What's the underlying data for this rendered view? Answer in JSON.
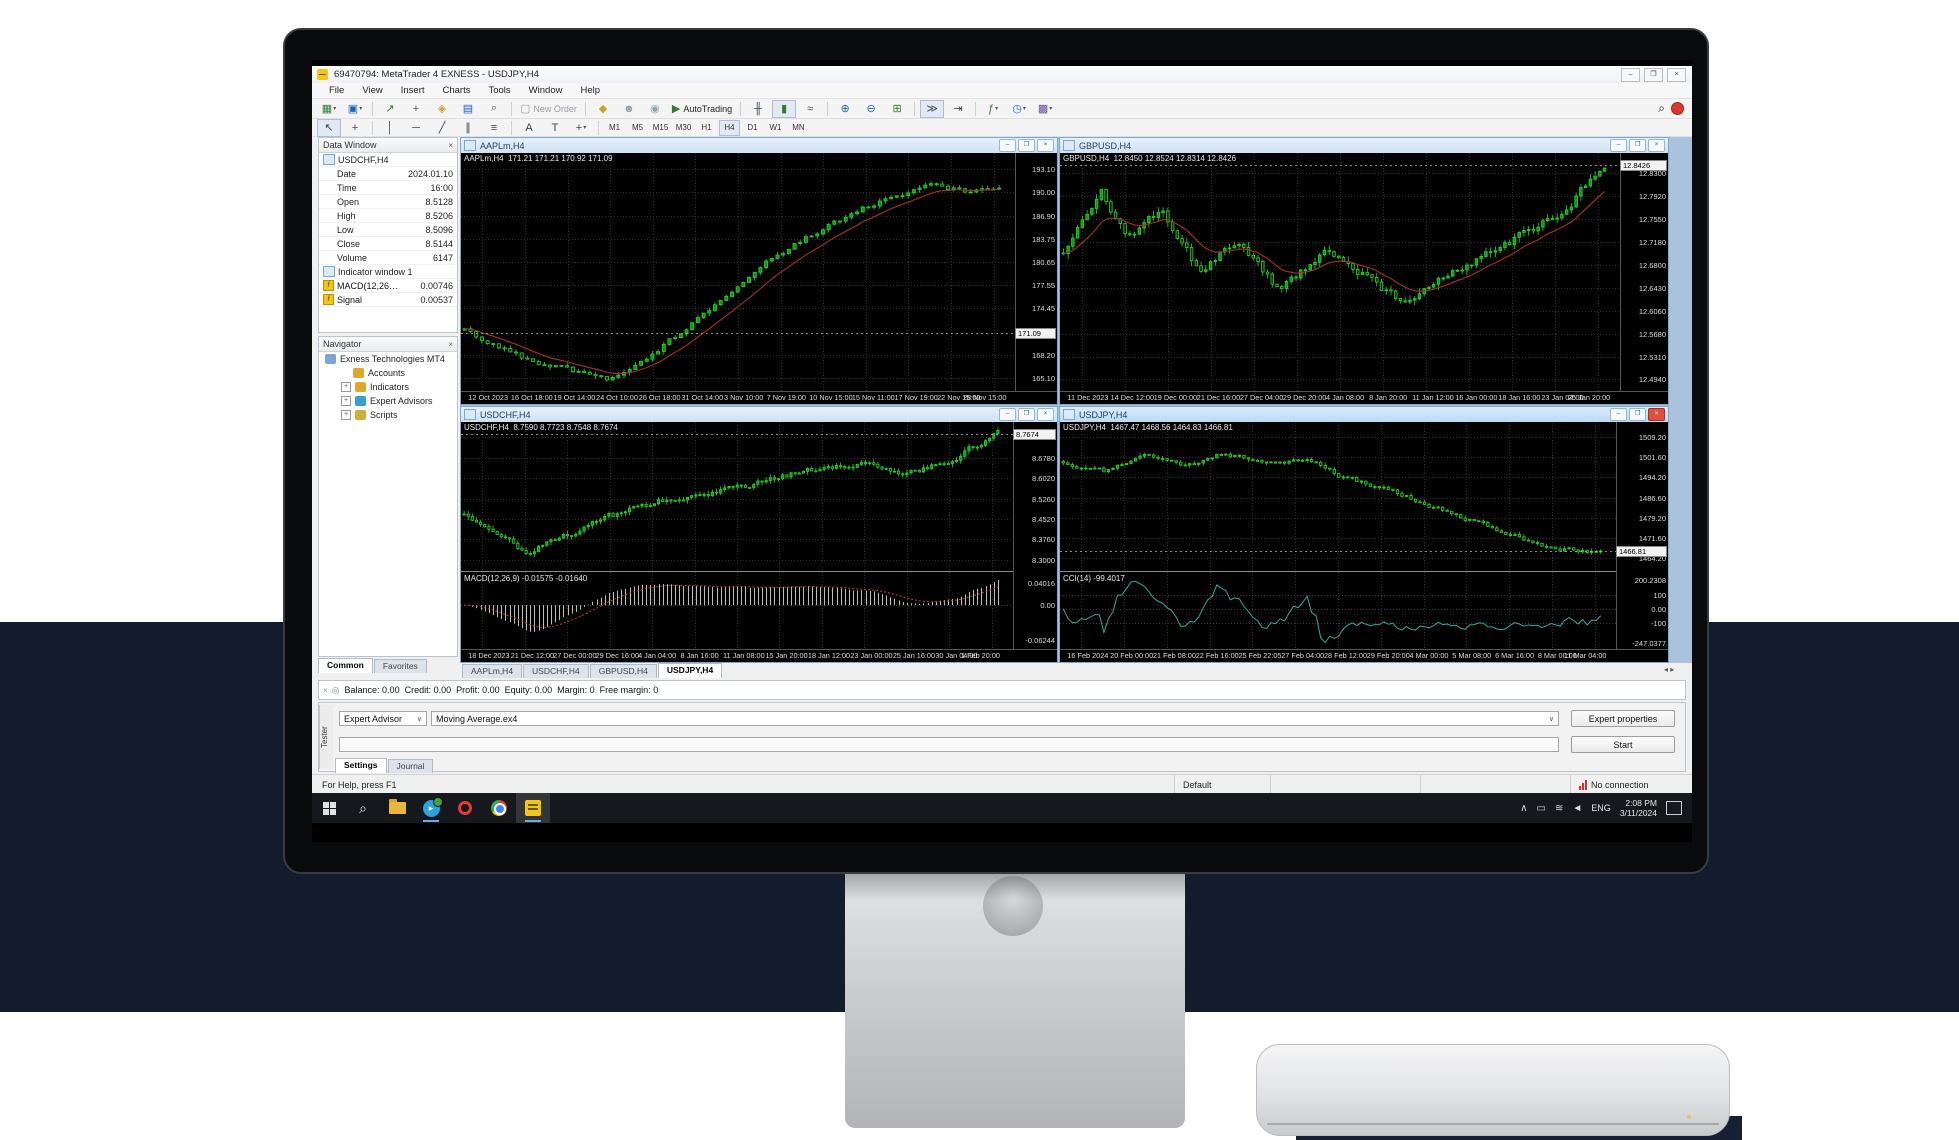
{
  "colors": {
    "candle_green": "#2bd62b",
    "candle_fill": "#149414",
    "ma_red": "#a83226",
    "cci_teal": "#3aa9a0",
    "macd_silver": "#bdbdbd",
    "navy_band": "#131c2d",
    "mdi_blue": "#a9c3dc"
  },
  "window": {
    "title": "69470794: MetaTrader 4 EXNESS - USDJPY,H4",
    "minimize": "–",
    "maximize": "❐",
    "close": "×"
  },
  "menu": [
    "File",
    "View",
    "Insert",
    "Charts",
    "Tools",
    "Window",
    "Help"
  ],
  "toolbar_main": [
    {
      "name": "new-chart-icon",
      "glyph": "▦",
      "color": "#2e7d32",
      "dropdown": true
    },
    {
      "name": "profiles-icon",
      "glyph": "▣",
      "color": "#1565c0",
      "dropdown": true
    },
    {
      "sep": true
    },
    {
      "name": "market-watch-icon",
      "glyph": "↗",
      "color": "#2e7d32"
    },
    {
      "name": "data-window-icon",
      "glyph": "+",
      "color": "#455a64"
    },
    {
      "name": "navigator-icon",
      "glyph": "◈",
      "color": "#c9a227"
    },
    {
      "name": "terminal-icon",
      "glyph": "▤",
      "color": "#1565c0"
    },
    {
      "name": "strategy-tester-icon",
      "glyph": "⌕",
      "color": "#455a64"
    },
    {
      "sep": true
    },
    {
      "name": "new-order-icon",
      "glyph": "▢",
      "color": "#9aa0a6",
      "label": "New Order",
      "grayed": true
    },
    {
      "sep": true
    },
    {
      "name": "metaeditor-icon",
      "glyph": "◆",
      "color": "#c9a227"
    },
    {
      "name": "chat-icon",
      "glyph": "☻",
      "color": "#90a4ae"
    },
    {
      "name": "news-icon",
      "glyph": "◉",
      "color": "#90a4ae"
    },
    {
      "name": "autotrading-icon",
      "glyph": "▶",
      "color": "#2e7d32",
      "label": "AutoTrading"
    },
    {
      "sep": true
    },
    {
      "name": "bar-chart-icon",
      "glyph": "╫",
      "color": "#37474f"
    },
    {
      "name": "candlestick-icon",
      "glyph": "▮",
      "color": "#2e7d32",
      "pressed": true
    },
    {
      "name": "line-chart-icon",
      "glyph": "≈",
      "color": "#37474f"
    },
    {
      "sep": true
    },
    {
      "name": "zoom-in-icon",
      "glyph": "⊕",
      "color": "#1565c0"
    },
    {
      "name": "zoom-out-icon",
      "glyph": "⊖",
      "color": "#1565c0"
    },
    {
      "name": "tile-windows-icon",
      "glyph": "⊞",
      "color": "#2e7d32"
    },
    {
      "sep": true
    },
    {
      "name": "auto-scroll-icon",
      "glyph": "≫",
      "color": "#37474f",
      "pressed": true
    },
    {
      "name": "chart-shift-icon",
      "glyph": "⇥",
      "color": "#37474f"
    },
    {
      "sep": true
    },
    {
      "name": "indicators-icon",
      "glyph": "ƒ",
      "color": "#2e7d32",
      "dropdown": true
    },
    {
      "name": "periods-icon",
      "glyph": "◷",
      "color": "#1565c0",
      "dropdown": true
    },
    {
      "name": "templates-icon",
      "glyph": "▩",
      "color": "#6a4fa3",
      "dropdown": true
    }
  ],
  "toolbar_tools": [
    {
      "name": "cursor-icon",
      "glyph": "↖",
      "pressed": true
    },
    {
      "name": "crosshair-icon",
      "glyph": "+"
    },
    {
      "sep": true
    },
    {
      "name": "vertical-line-icon",
      "glyph": "│"
    },
    {
      "name": "horizontal-line-icon",
      "glyph": "─"
    },
    {
      "name": "trendline-icon",
      "glyph": "╱"
    },
    {
      "name": "channel-icon",
      "glyph": "∥"
    },
    {
      "name": "fibonacci-icon",
      "glyph": "≡"
    },
    {
      "sep": true
    },
    {
      "name": "text-icon",
      "glyph": "A"
    },
    {
      "name": "label-icon",
      "glyph": "T"
    },
    {
      "name": "arrows-icon",
      "glyph": "+",
      "dropdown": true
    }
  ],
  "timeframes": {
    "items": [
      "M1",
      "M5",
      "M15",
      "M30",
      "H1",
      "H4",
      "D1",
      "W1",
      "MN"
    ],
    "active": "H4"
  },
  "search": {
    "name": "search-icon",
    "glyph": "⌕"
  },
  "data_window": {
    "title": "Data Window",
    "symbol": "USDCHF,H4",
    "rows": [
      {
        "label": "Date",
        "value": "2024.01.10"
      },
      {
        "label": "Time",
        "value": "16:00"
      },
      {
        "label": "Open",
        "value": "8.5128"
      },
      {
        "label": "High",
        "value": "8.5206"
      },
      {
        "label": "Low",
        "value": "8.5096"
      },
      {
        "label": "Close",
        "value": "8.5144"
      },
      {
        "label": "Volume",
        "value": "6147"
      }
    ],
    "indicator_header": "Indicator window 1",
    "indicator_rows": [
      {
        "label": "MACD(12,26…",
        "value": "0.00746"
      },
      {
        "label": "Signal",
        "value": "0.00537"
      }
    ]
  },
  "navigator": {
    "title": "Navigator",
    "root": "Exness Technologies MT4",
    "items": [
      {
        "label": "Accounts",
        "expand": false,
        "color": "#e0a62e"
      },
      {
        "label": "Indicators",
        "expand": true,
        "color": "#e0a62e"
      },
      {
        "label": "Expert Advisors",
        "expand": true,
        "color": "#39a0c8"
      },
      {
        "label": "Scripts",
        "expand": true,
        "color": "#c8b23a"
      }
    ]
  },
  "left_tabs": {
    "items": [
      "Common",
      "Favorites"
    ],
    "active": "Common"
  },
  "chart_tabs": {
    "items": [
      "AAPLm,H4",
      "USDCHF,H4",
      "GBPUSD,H4",
      "USDJPY,H4"
    ],
    "active": "USDJPY,H4"
  },
  "terminal": {
    "balance_line": "Balance: 0.00  Credit: 0.00  Profit: 0.00  Equity: 0.00  Margin: 0  Free margin: 0"
  },
  "tester": {
    "side_label": "Tester",
    "type_value": "Expert Advisor",
    "ea_value": "Moving Average.ex4",
    "properties_label": "Expert properties",
    "start_label": "Start",
    "tabs": [
      "Settings",
      "Journal"
    ],
    "active_tab": "Settings"
  },
  "status": {
    "help": "For Help, press F1",
    "profile": "Default",
    "connection": "No connection"
  },
  "taskbar": {
    "lang": "ENG",
    "time": "2:08 PM",
    "date": "3/11/2024"
  },
  "chart_data": [
    {
      "type": "candlestick",
      "symbol": "AAPLm,H4",
      "info": "AAPLm,H4  171.21 171.21 170.92 171.09",
      "tick_values": [
        193.1,
        190.0,
        186.9,
        183.75,
        180.65,
        177.55,
        174.45,
        168.2,
        165.1
      ],
      "tick_labels": [
        "193.10",
        "190.00",
        "186.90",
        "183.75",
        "180.65",
        "177.55",
        "174.45",
        "168.20",
        "165.10"
      ],
      "ylim": [
        163.6,
        194.9
      ],
      "current": 171.09,
      "current_label": "171.09",
      "time_labels": [
        "12 Oct 2023",
        "16 Oct 18:00",
        "19 Oct 14:00",
        "24 Oct 10:00",
        "26 Oct 18:00",
        "31 Oct 14:00",
        "3 Nov 10:00",
        "7 Nov 19:00",
        "10 Nov 15:00",
        "15 Nov 11:00",
        "17 Nov 19:00",
        "22 Nov 15:00",
        "28 Nov 15:00"
      ],
      "candles": 95,
      "noise": 0.65,
      "seed": 7,
      "ma": true,
      "ma_window": 10,
      "trend": [
        [
          0,
          171.5
        ],
        [
          0.06,
          169.5
        ],
        [
          0.12,
          167.5
        ],
        [
          0.2,
          166.0
        ],
        [
          0.27,
          164.9
        ],
        [
          0.33,
          167.5
        ],
        [
          0.4,
          171.0
        ],
        [
          0.48,
          175.5
        ],
        [
          0.56,
          180.5
        ],
        [
          0.64,
          184.0
        ],
        [
          0.72,
          187.0
        ],
        [
          0.8,
          189.5
        ],
        [
          0.88,
          191.2
        ],
        [
          0.94,
          190.0
        ],
        [
          1,
          190.4
        ]
      ],
      "active": false,
      "sub": null
    },
    {
      "type": "candlestick",
      "symbol": "GBPUSD,H4",
      "info": "GBPUSD,H4  12.8450 12.8524 12.8314 12.8426",
      "tick_values": [
        12.83,
        12.792,
        12.755,
        12.718,
        12.68,
        12.643,
        12.606,
        12.568,
        12.531,
        12.494
      ],
      "tick_labels": [
        "12.8300",
        "12.7920",
        "12.7550",
        "12.7180",
        "12.6800",
        "12.6430",
        "12.6060",
        "12.5680",
        "12.5310",
        "12.4940"
      ],
      "ylim": [
        12.478,
        12.858
      ],
      "current": 12.8426,
      "current_label": "12.8426",
      "time_labels": [
        "11 Dec 2023",
        "14 Dec 12:00",
        "19 Dec 00:00",
        "21 Dec 16:00",
        "27 Dec 04:00",
        "29 Dec 20:00",
        "4 Jan 08:00",
        "8 Jan 20:00",
        "11 Jan 12:00",
        "16 Jan 00:00",
        "18 Jan 16:00",
        "23 Jan 04:00",
        "25 Jan 20:00"
      ],
      "candles": 115,
      "noise": 0.013,
      "seed": 21,
      "ma": true,
      "ma_window": 12,
      "trend": [
        [
          0,
          12.7
        ],
        [
          0.07,
          12.8
        ],
        [
          0.12,
          12.72
        ],
        [
          0.18,
          12.77
        ],
        [
          0.25,
          12.67
        ],
        [
          0.32,
          12.72
        ],
        [
          0.4,
          12.64
        ],
        [
          0.48,
          12.7
        ],
        [
          0.55,
          12.67
        ],
        [
          0.62,
          12.62
        ],
        [
          0.7,
          12.66
        ],
        [
          0.78,
          12.7
        ],
        [
          0.85,
          12.73
        ],
        [
          0.92,
          12.77
        ],
        [
          1,
          12.838
        ]
      ],
      "active": false,
      "sub": null
    },
    {
      "type": "candlestick",
      "symbol": "USDCHF,H4",
      "info": "USDCHF,H4  8.7590 8.7723 8.7548 8.7674",
      "tick_values": [
        8.754,
        8.678,
        8.602,
        8.526,
        8.452,
        8.376,
        8.3
      ],
      "tick_labels": [
        "8.7540",
        "8.6780",
        "8.6020",
        "8.5260",
        "8.4520",
        "8.3760",
        "8.3000"
      ],
      "ylim": [
        8.27,
        8.8
      ],
      "current": 8.7674,
      "current_label": "8.7674",
      "time_labels": [
        "18 Dec 2023",
        "21 Dec 12:00",
        "27 Dec 00:00",
        "29 Dec 16:00",
        "4 Jan 04:00",
        "8 Jan 16:00",
        "11 Jan 08:00",
        "15 Jan 20:00",
        "18 Jan 12:00",
        "23 Jan 00:00",
        "25 Jan 16:00",
        "30 Jan 04:00",
        "1 Feb 20:00"
      ],
      "candles": 130,
      "noise": 0.02,
      "seed": 33,
      "ma": false,
      "ma_window": 10,
      "trend": [
        [
          0,
          8.47
        ],
        [
          0.06,
          8.4
        ],
        [
          0.12,
          8.33
        ],
        [
          0.18,
          8.38
        ],
        [
          0.25,
          8.44
        ],
        [
          0.33,
          8.5
        ],
        [
          0.42,
          8.54
        ],
        [
          0.5,
          8.56
        ],
        [
          0.58,
          8.6
        ],
        [
          0.66,
          8.64
        ],
        [
          0.74,
          8.66
        ],
        [
          0.82,
          8.62
        ],
        [
          0.9,
          8.66
        ],
        [
          1,
          8.765
        ]
      ],
      "active": false,
      "sub": {
        "type": "macd",
        "label": "MACD(12,26,9) -0.01575 -0.01640",
        "tick_values": [
          0.04016,
          0.0,
          -0.06244
        ],
        "tick_labels": [
          "0.04016",
          "0.00",
          "-0.06244"
        ],
        "ylim": [
          -0.075,
          0.052
        ],
        "ref_lines": [
          0
        ]
      }
    },
    {
      "type": "candlestick",
      "symbol": "USDJPY,H4",
      "info": "USDJPY,H4  1467.47 1468.56 1464.83 1466.81",
      "tick_values": [
        1509.2,
        1501.6,
        1494.2,
        1486.6,
        1479.2,
        1471.6,
        1464.2
      ],
      "tick_labels": [
        "1509.20",
        "1501.60",
        "1494.20",
        "1486.60",
        "1479.20",
        "1471.60",
        "1464.20"
      ],
      "ylim": [
        1460.5,
        1513.5
      ],
      "current": 1466.81,
      "current_label": "1466.81",
      "time_labels": [
        "16 Feb 2024",
        "20 Feb 00:00",
        "21 Feb 08:00",
        "22 Feb 16:00",
        "25 Feb 22:05",
        "27 Feb 04:00",
        "28 Feb 12:00",
        "29 Feb 20:00",
        "4 Mar 00:00",
        "5 Mar 08:00",
        "6 Mar 16:00",
        "8 Mar 00:00",
        "11 Mar 04:00"
      ],
      "candles": 120,
      "noise": 1.5,
      "seed": 55,
      "ma": false,
      "ma_window": 10,
      "trend": [
        [
          0,
          1500
        ],
        [
          0.08,
          1496
        ],
        [
          0.15,
          1502
        ],
        [
          0.22,
          1498
        ],
        [
          0.3,
          1503
        ],
        [
          0.38,
          1499
        ],
        [
          0.45,
          1501
        ],
        [
          0.52,
          1494
        ],
        [
          0.6,
          1490
        ],
        [
          0.68,
          1484
        ],
        [
          0.75,
          1479
        ],
        [
          0.82,
          1474
        ],
        [
          0.9,
          1468
        ],
        [
          1,
          1466.5
        ]
      ],
      "active": true,
      "sub": {
        "type": "cci",
        "label": "CCI(14) -99.4017",
        "tick_values": [
          200.2308,
          100,
          0,
          -100,
          -247.0377
        ],
        "tick_labels": [
          "200.2308",
          "100",
          "0.00",
          "-100",
          "-247.0377"
        ],
        "ylim": [
          -272,
          232
        ],
        "ref_lines": [
          100,
          0,
          -100
        ]
      }
    }
  ]
}
